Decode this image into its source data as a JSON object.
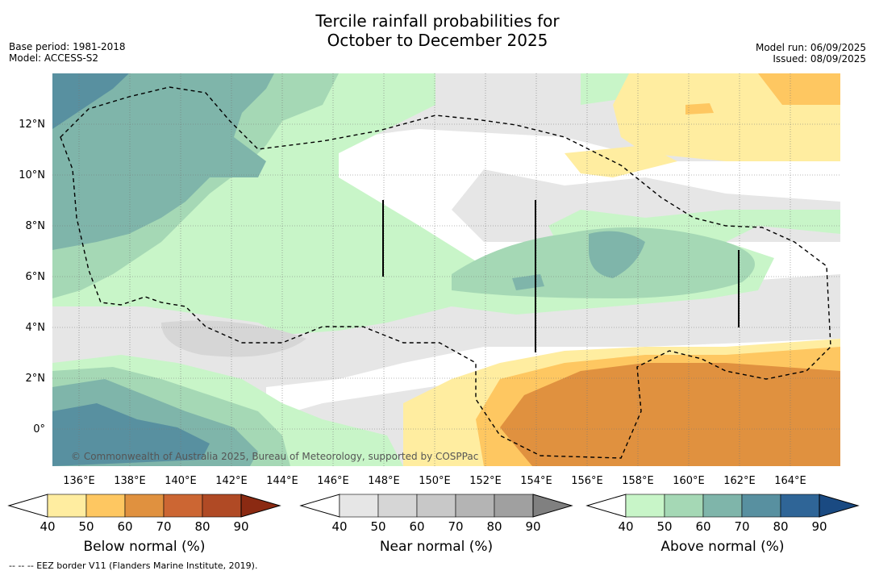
{
  "title": {
    "line1": "Tercile rainfall probabilities for",
    "line2": "October to December 2025"
  },
  "meta": {
    "base_period": "Base period: 1981-2018",
    "model": "Model: ACCESS-S2",
    "model_run": "Model run: 06/09/2025",
    "issued": "Issued: 08/09/2025"
  },
  "map": {
    "x_ticks": [
      "136°E",
      "138°E",
      "140°E",
      "142°E",
      "144°E",
      "146°E",
      "148°E",
      "150°E",
      "152°E",
      "154°E",
      "156°E",
      "158°E",
      "160°E",
      "162°E",
      "164°E"
    ],
    "y_ticks": [
      "12°N",
      "10°N",
      "8°N",
      "6°N",
      "4°N",
      "2°N",
      "0°"
    ],
    "copyright": "© Commonwealth of Australia 2025, Bureau of Meteorology, supported by COSPPac"
  },
  "colorbars": {
    "below": {
      "label": "Below normal (%)",
      "ticks": [
        "40",
        "50",
        "60",
        "70",
        "80",
        "90"
      ],
      "colors": [
        "#ffffff",
        "#ffeda0",
        "#fec761",
        "#e0913f",
        "#cc6633",
        "#b04a25",
        "#8b2a12"
      ]
    },
    "near": {
      "label": "Near normal (%)",
      "ticks": [
        "40",
        "50",
        "60",
        "70",
        "80",
        "90"
      ],
      "colors": [
        "#ffffff",
        "#e6e6e6",
        "#d6d6d6",
        "#c8c8c8",
        "#b4b4b4",
        "#a0a0a0",
        "#808080"
      ]
    },
    "above": {
      "label": "Above normal (%)",
      "ticks": [
        "40",
        "50",
        "60",
        "70",
        "80",
        "90"
      ],
      "colors": [
        "#ffffff",
        "#c8f5c8",
        "#a5d8b5",
        "#7fb5aa",
        "#5890a0",
        "#2f6597",
        "#1a4a82"
      ]
    }
  },
  "footer": "--  --  -- EEZ border V11 (Flanders Marine Institute, 2019)."
}
